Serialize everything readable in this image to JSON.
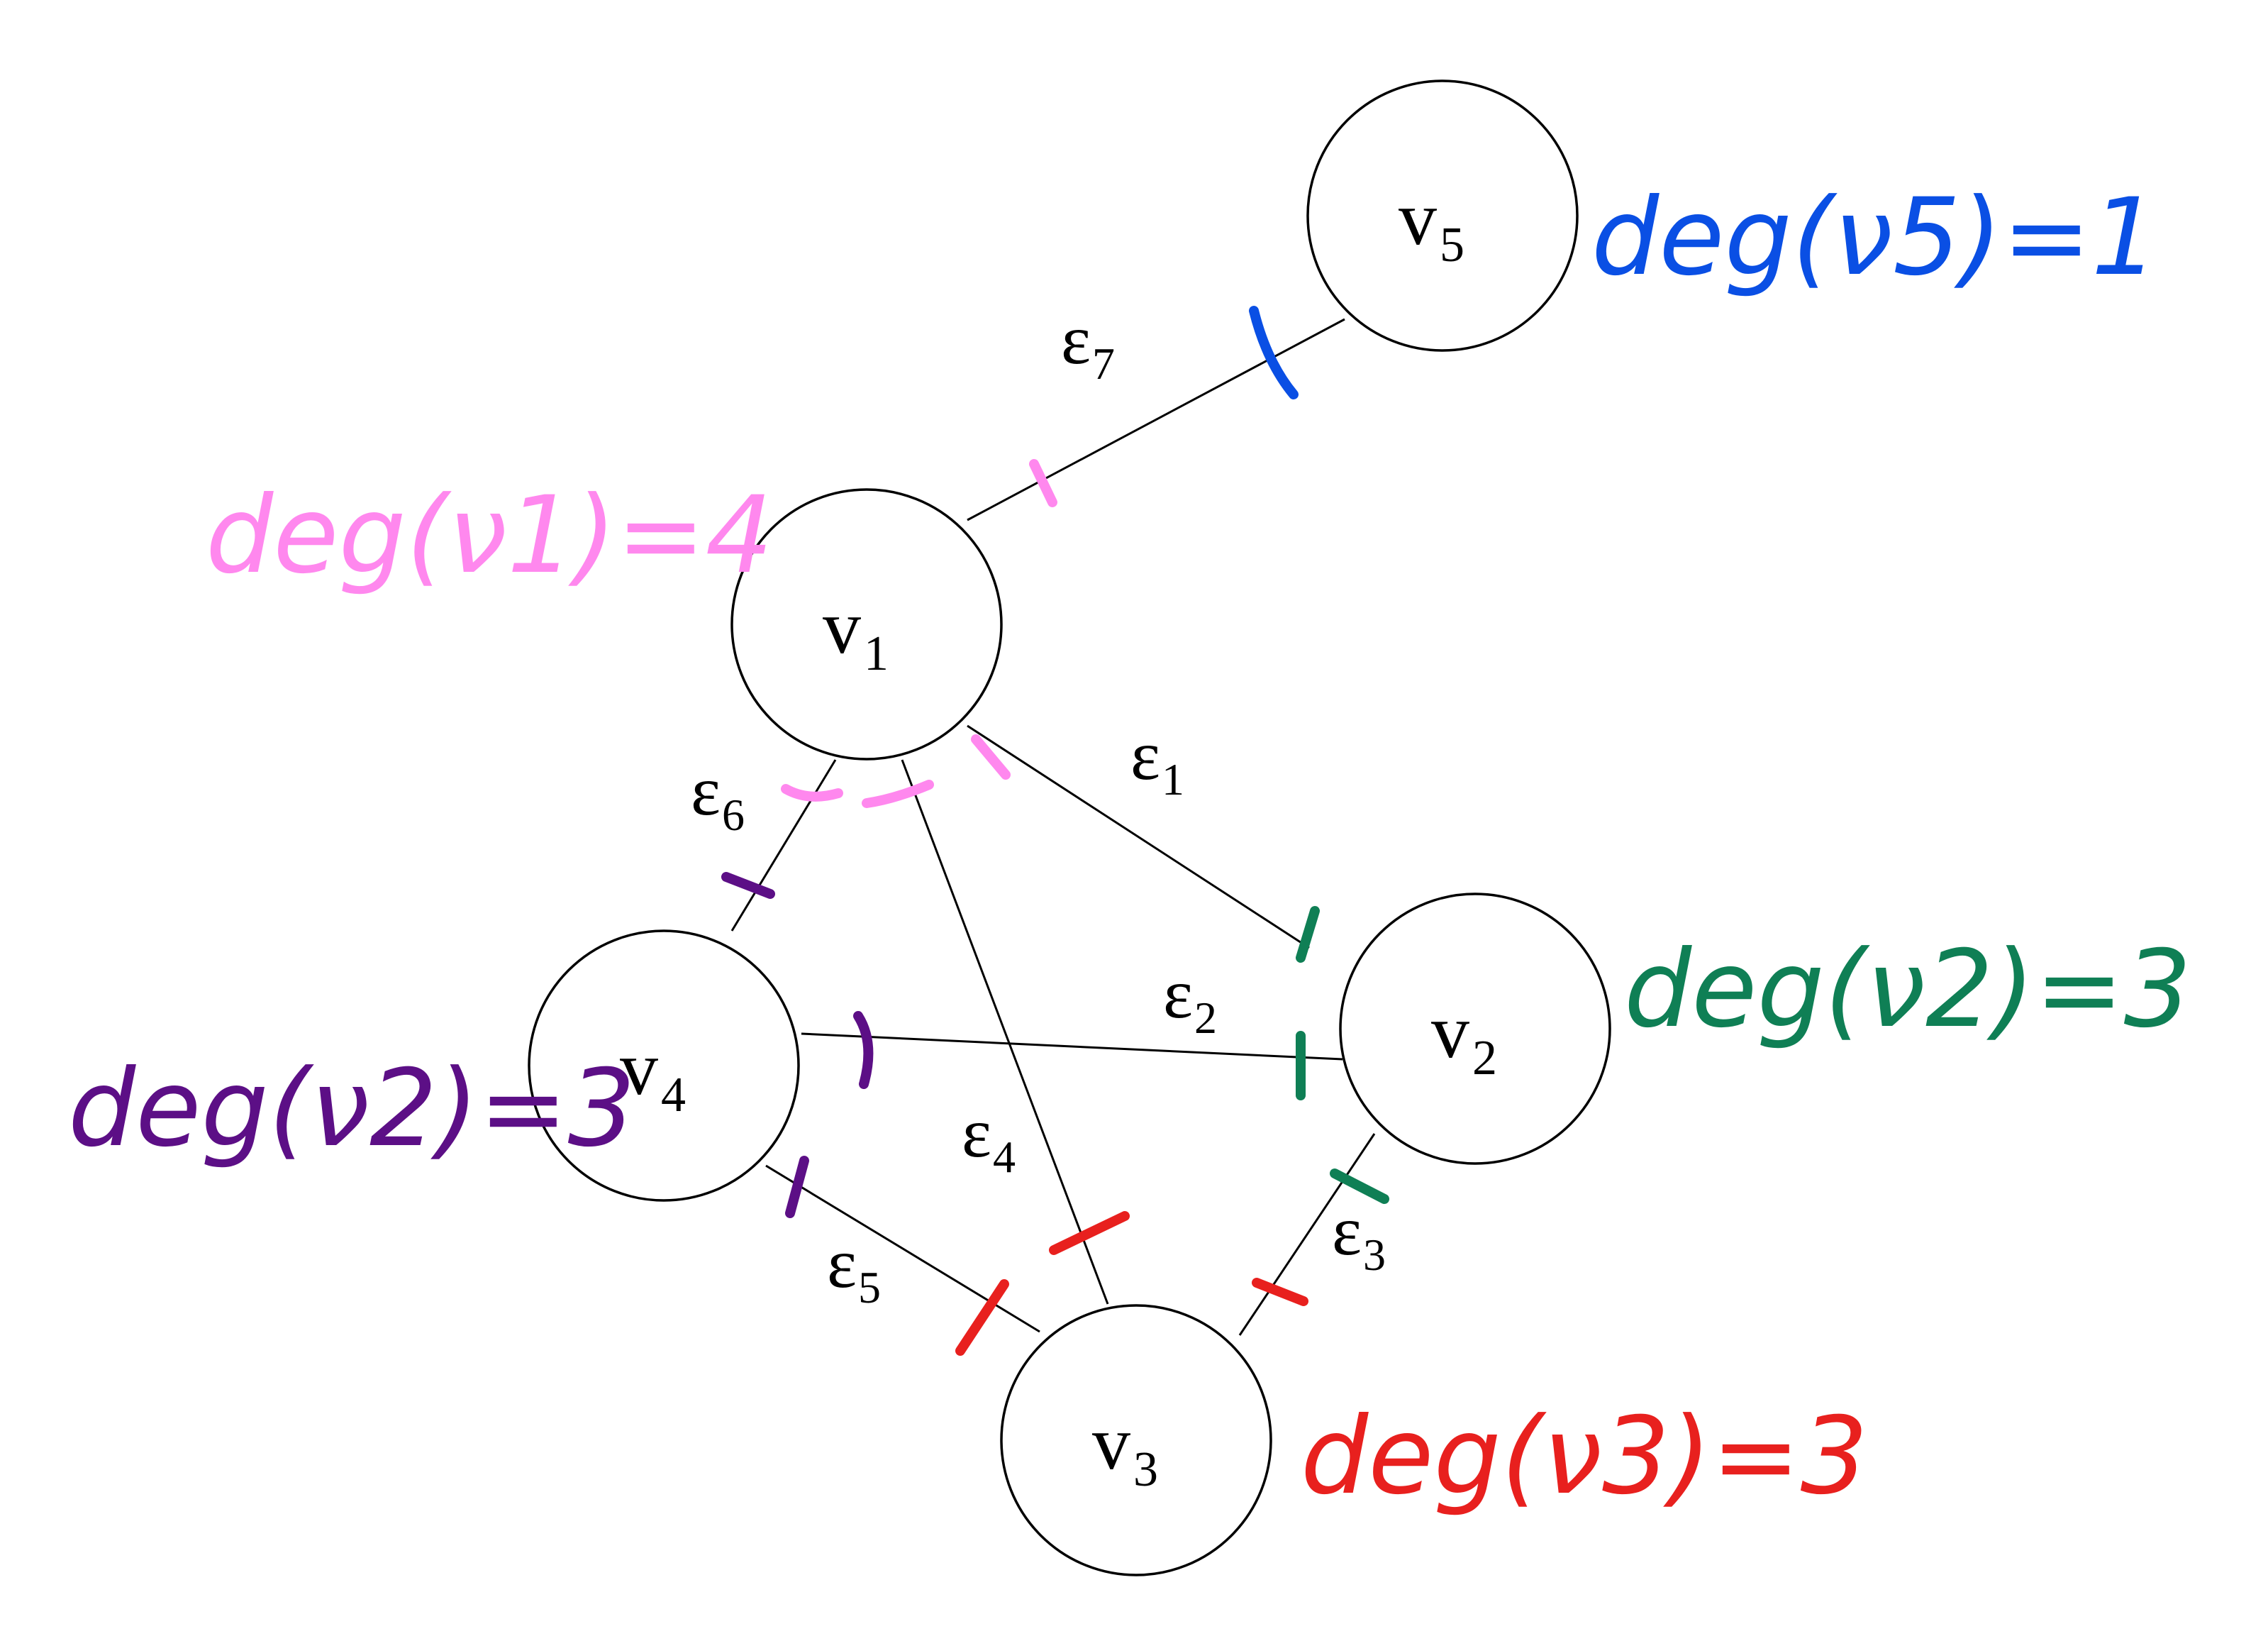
{
  "colors": {
    "v1": "#ff88ee",
    "v2": "#0f7f55",
    "v3": "#e8201e",
    "v4": "#5c0f86",
    "v5": "#0a4fe4"
  },
  "nodes": [
    {
      "id": "v1",
      "symbol": "v",
      "sub": "1"
    },
    {
      "id": "v2",
      "symbol": "v",
      "sub": "2"
    },
    {
      "id": "v3",
      "symbol": "v",
      "sub": "3"
    },
    {
      "id": "v4",
      "symbol": "v",
      "sub": "4"
    },
    {
      "id": "v5",
      "symbol": "v",
      "sub": "5"
    }
  ],
  "edges": [
    {
      "id": "e1",
      "symbol": "ε",
      "sub": "1",
      "from": "v1",
      "to": "v2"
    },
    {
      "id": "e2",
      "symbol": "ε",
      "sub": "2",
      "from": "v4",
      "to": "v2"
    },
    {
      "id": "e3",
      "symbol": "ε",
      "sub": "3",
      "from": "v2",
      "to": "v3"
    },
    {
      "id": "e4",
      "symbol": "ε",
      "sub": "4",
      "from": "v1",
      "to": "v3"
    },
    {
      "id": "e5",
      "symbol": "ε",
      "sub": "5",
      "from": "v4",
      "to": "v3"
    },
    {
      "id": "e6",
      "symbol": "ε",
      "sub": "6",
      "from": "v1",
      "to": "v4"
    },
    {
      "id": "e7",
      "symbol": "ε",
      "sub": "7",
      "from": "v1",
      "to": "v5"
    }
  ],
  "degree_annotations": [
    {
      "node": "v1",
      "text": "deg(ν1)=4"
    },
    {
      "node": "v2",
      "text": "deg(ν2)=3"
    },
    {
      "node": "v3",
      "text": "deg(ν3)=3"
    },
    {
      "node": "v4",
      "text": "deg(ν2)=3"
    },
    {
      "node": "v5",
      "text": "deg(ν5)=1"
    }
  ]
}
